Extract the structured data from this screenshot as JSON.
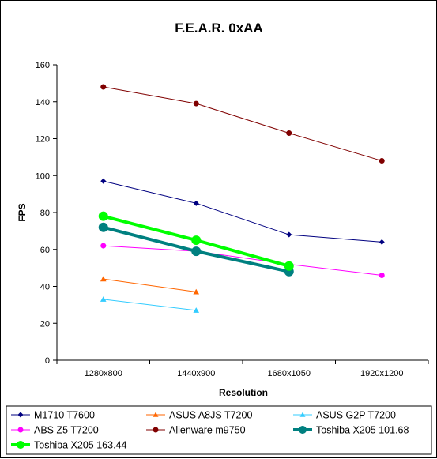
{
  "chart_data": {
    "type": "line",
    "title": "F.E.A.R. 0xAA",
    "xlabel": "Resolution",
    "ylabel": "FPS",
    "categories": [
      "1280x800",
      "1440x900",
      "1680x1050",
      "1920x1200"
    ],
    "ylim": [
      0,
      160
    ],
    "yticks": [
      "0",
      "20",
      "40",
      "60",
      "80",
      "100",
      "120",
      "140",
      "160"
    ],
    "grid": false,
    "legend_position": "bottom",
    "series": [
      {
        "name": "M1710 T7600",
        "values": [
          97,
          85,
          68,
          64
        ],
        "color": "#000080",
        "marker": "diamond",
        "width": "thin"
      },
      {
        "name": "ASUS A8JS T7200",
        "values": [
          44,
          37,
          null,
          null
        ],
        "color": "#FF6600",
        "marker": "triangle",
        "width": "thin"
      },
      {
        "name": "ASUS G2P T7200",
        "values": [
          33,
          27,
          null,
          null
        ],
        "color": "#33CCFF",
        "marker": "triangle",
        "width": "thin"
      },
      {
        "name": "ABS Z5 T7200",
        "values": [
          62,
          59,
          52,
          46
        ],
        "color": "#FF00FF",
        "marker": "circle",
        "width": "thin"
      },
      {
        "name": "Alienware m9750",
        "values": [
          148,
          139,
          123,
          108
        ],
        "color": "#800000",
        "marker": "circle",
        "width": "thin"
      },
      {
        "name": "Toshiba X205 101.68",
        "values": [
          72,
          59,
          48,
          null
        ],
        "color": "#008080",
        "marker": "circle",
        "width": "thick"
      },
      {
        "name": "Toshiba X205 163.44",
        "values": [
          78,
          65,
          51,
          null
        ],
        "color": "#00FF00",
        "marker": "circle",
        "width": "thick"
      }
    ]
  }
}
